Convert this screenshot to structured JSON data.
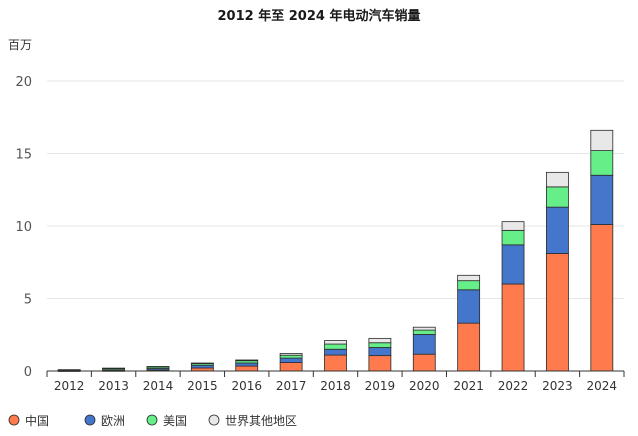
{
  "chart_data": {
    "type": "bar",
    "stacked": true,
    "title": "2012 年至 2024 年电动汽车销量",
    "ylabel": "百万",
    "xlabel": "",
    "ylim": [
      0,
      20
    ],
    "yticks": [
      0,
      5,
      10,
      15,
      20
    ],
    "grid": true,
    "legend_position": "bottom-left",
    "categories": [
      "2012",
      "2013",
      "2014",
      "2015",
      "2016",
      "2017",
      "2018",
      "2019",
      "2020",
      "2021",
      "2022",
      "2023",
      "2024"
    ],
    "series": [
      {
        "name": "中国",
        "color": "#ff7a4d",
        "values": [
          0.01,
          0.02,
          0.07,
          0.21,
          0.34,
          0.58,
          1.1,
          1.06,
          1.16,
          3.3,
          6.0,
          8.1,
          10.1
        ]
      },
      {
        "name": "欧洲",
        "color": "#4477cc",
        "values": [
          0.02,
          0.06,
          0.1,
          0.19,
          0.21,
          0.31,
          0.4,
          0.56,
          1.36,
          2.3,
          2.7,
          3.2,
          3.4
        ]
      },
      {
        "name": "美国",
        "color": "#66ee88",
        "values": [
          0.05,
          0.1,
          0.12,
          0.11,
          0.16,
          0.2,
          0.36,
          0.33,
          0.3,
          0.63,
          1.0,
          1.4,
          1.7
        ]
      },
      {
        "name": "世界其他地区",
        "color": "#e8e8e8",
        "values": [
          0.01,
          0.02,
          0.02,
          0.04,
          0.05,
          0.12,
          0.24,
          0.3,
          0.2,
          0.37,
          0.6,
          1.0,
          1.4
        ]
      }
    ]
  }
}
